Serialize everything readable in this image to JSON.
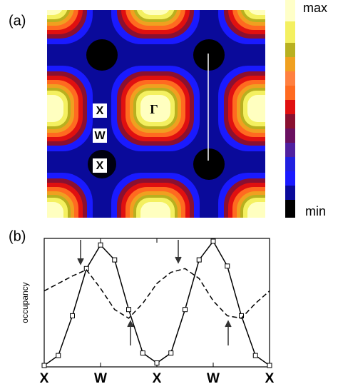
{
  "panel_a": {
    "label": "(a)",
    "max_label": "max",
    "min_label": "min",
    "points": [
      "X",
      "W",
      "X"
    ],
    "gamma": "Γ"
  },
  "chart_data": {
    "type": "line",
    "label": "(b)",
    "y_label": "occupancy",
    "x": [
      0,
      0.25,
      0.5,
      0.75,
      1,
      1.25,
      1.5,
      1.75,
      2,
      2.25,
      2.5,
      2.75,
      3,
      3.25,
      3.5,
      3.75,
      4
    ],
    "xlim": [
      0,
      4
    ],
    "ylim": [
      0,
      1
    ],
    "xticks": [
      {
        "value": 0,
        "label": "X"
      },
      {
        "value": 1,
        "label": "W"
      },
      {
        "value": 2,
        "label": "X"
      },
      {
        "value": 3,
        "label": "W"
      },
      {
        "value": 4,
        "label": "X"
      }
    ],
    "series": [
      {
        "color": "#000000",
        "style": "solid",
        "markers": true,
        "values": [
          0.0,
          0.08,
          0.4,
          0.78,
          0.97,
          0.85,
          0.45,
          0.1,
          0.02,
          0.1,
          0.45,
          0.85,
          1.0,
          0.8,
          0.4,
          0.08,
          0.0
        ]
      },
      {
        "color": "#000000",
        "style": "dashed",
        "markers": false,
        "values": [
          0.6,
          0.66,
          0.72,
          0.77,
          0.62,
          0.45,
          0.38,
          0.5,
          0.66,
          0.75,
          0.78,
          0.7,
          0.52,
          0.4,
          0.38,
          0.5,
          0.6
        ]
      }
    ]
  }
}
